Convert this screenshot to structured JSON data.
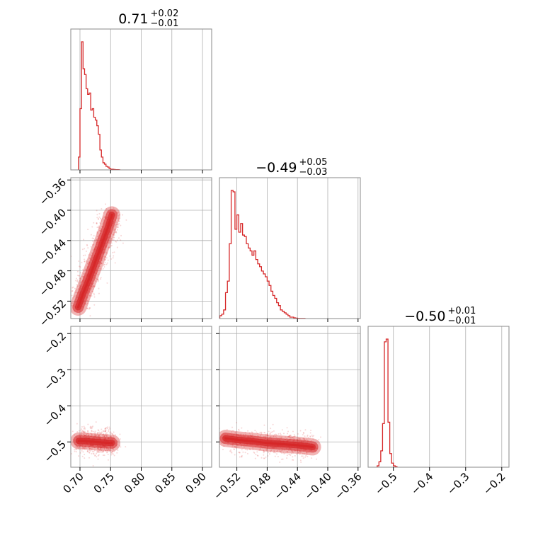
{
  "chart_data": {
    "type": "corner",
    "color": "#d62728",
    "grid": true,
    "parameters": [
      {
        "title": "0.71",
        "upper": "+0.02",
        "lower": "−0.01",
        "range": [
          0.685,
          0.915
        ],
        "ticks": [
          0.7,
          0.75,
          0.8,
          0.85,
          0.9
        ],
        "tick_labels": [
          "0.70",
          "0.75",
          "0.80",
          "0.85",
          "0.90"
        ]
      },
      {
        "title": "−0.49",
        "upper": "+0.05",
        "lower": "−0.03",
        "range": [
          -0.543,
          -0.357
        ],
        "ticks": [
          -0.52,
          -0.48,
          -0.44,
          -0.4,
          -0.36
        ],
        "tick_labels": [
          "−0.52",
          "−0.48",
          "−0.44",
          "−0.40",
          "−0.36"
        ]
      },
      {
        "title": "−0.50",
        "upper": "+0.01",
        "lower": "−0.01",
        "range": [
          -0.57,
          -0.18
        ],
        "ticks": [
          -0.5,
          -0.4,
          -0.3,
          -0.2
        ],
        "tick_labels": [
          "−0.5",
          "−0.4",
          "−0.3",
          "−0.2"
        ]
      }
    ],
    "histograms": [
      {
        "param": 0,
        "edges_start": 0.6975,
        "bin_width": 0.0025,
        "counts": [
          0.09,
          0.43,
          0.9,
          0.71,
          0.67,
          0.57,
          0.53,
          0.54,
          0.42,
          0.43,
          0.37,
          0.35,
          0.31,
          0.25,
          0.14,
          0.09,
          0.05,
          0.04,
          0.025,
          0.02,
          0.01,
          0.005,
          0.004,
          0.003,
          0.002,
          0.002,
          0.001
        ]
      },
      {
        "param": 1,
        "edges_start": -0.5425,
        "bin_width": 0.0025,
        "counts": [
          0.02,
          0.03,
          0.06,
          0.18,
          0.26,
          0.52,
          0.89,
          0.88,
          0.62,
          0.72,
          0.6,
          0.66,
          0.58,
          0.57,
          0.52,
          0.49,
          0.47,
          0.44,
          0.47,
          0.41,
          0.38,
          0.36,
          0.33,
          0.31,
          0.29,
          0.26,
          0.23,
          0.19,
          0.16,
          0.14,
          0.11,
          0.09,
          0.06,
          0.05,
          0.04,
          0.03,
          0.02,
          0.01,
          0.01,
          0.005,
          0.003,
          0.002,
          0.001,
          0.001,
          0.001
        ]
      },
      {
        "param": 2,
        "edges_start": -0.545,
        "bin_width": 0.005,
        "counts": [
          0.01,
          0.04,
          0.12,
          0.32,
          0.92,
          0.94,
          0.33,
          0.1,
          0.03,
          0.01,
          0.005
        ]
      }
    ],
    "scatter_panels": [
      {
        "x": 0,
        "y": 1,
        "ridge": [
          [
            0.697,
            -0.528
          ],
          [
            0.705,
            -0.51
          ],
          [
            0.715,
            -0.49
          ],
          [
            0.725,
            -0.468
          ],
          [
            0.735,
            -0.446
          ],
          [
            0.745,
            -0.424
          ],
          [
            0.752,
            -0.406
          ]
        ],
        "spread": 0.009
      },
      {
        "x": 0,
        "y": 2,
        "ridge": [
          [
            0.698,
            -0.497
          ],
          [
            0.71,
            -0.498
          ],
          [
            0.725,
            -0.5
          ],
          [
            0.74,
            -0.502
          ],
          [
            0.752,
            -0.503
          ]
        ],
        "spread": 0.008
      },
      {
        "x": 1,
        "y": 2,
        "ridge": [
          [
            -0.535,
            -0.49
          ],
          [
            -0.52,
            -0.494
          ],
          [
            -0.5,
            -0.498
          ],
          [
            -0.48,
            -0.503
          ],
          [
            -0.46,
            -0.506
          ],
          [
            -0.44,
            -0.509
          ],
          [
            -0.42,
            -0.514
          ]
        ],
        "spread": 0.008
      }
    ]
  }
}
